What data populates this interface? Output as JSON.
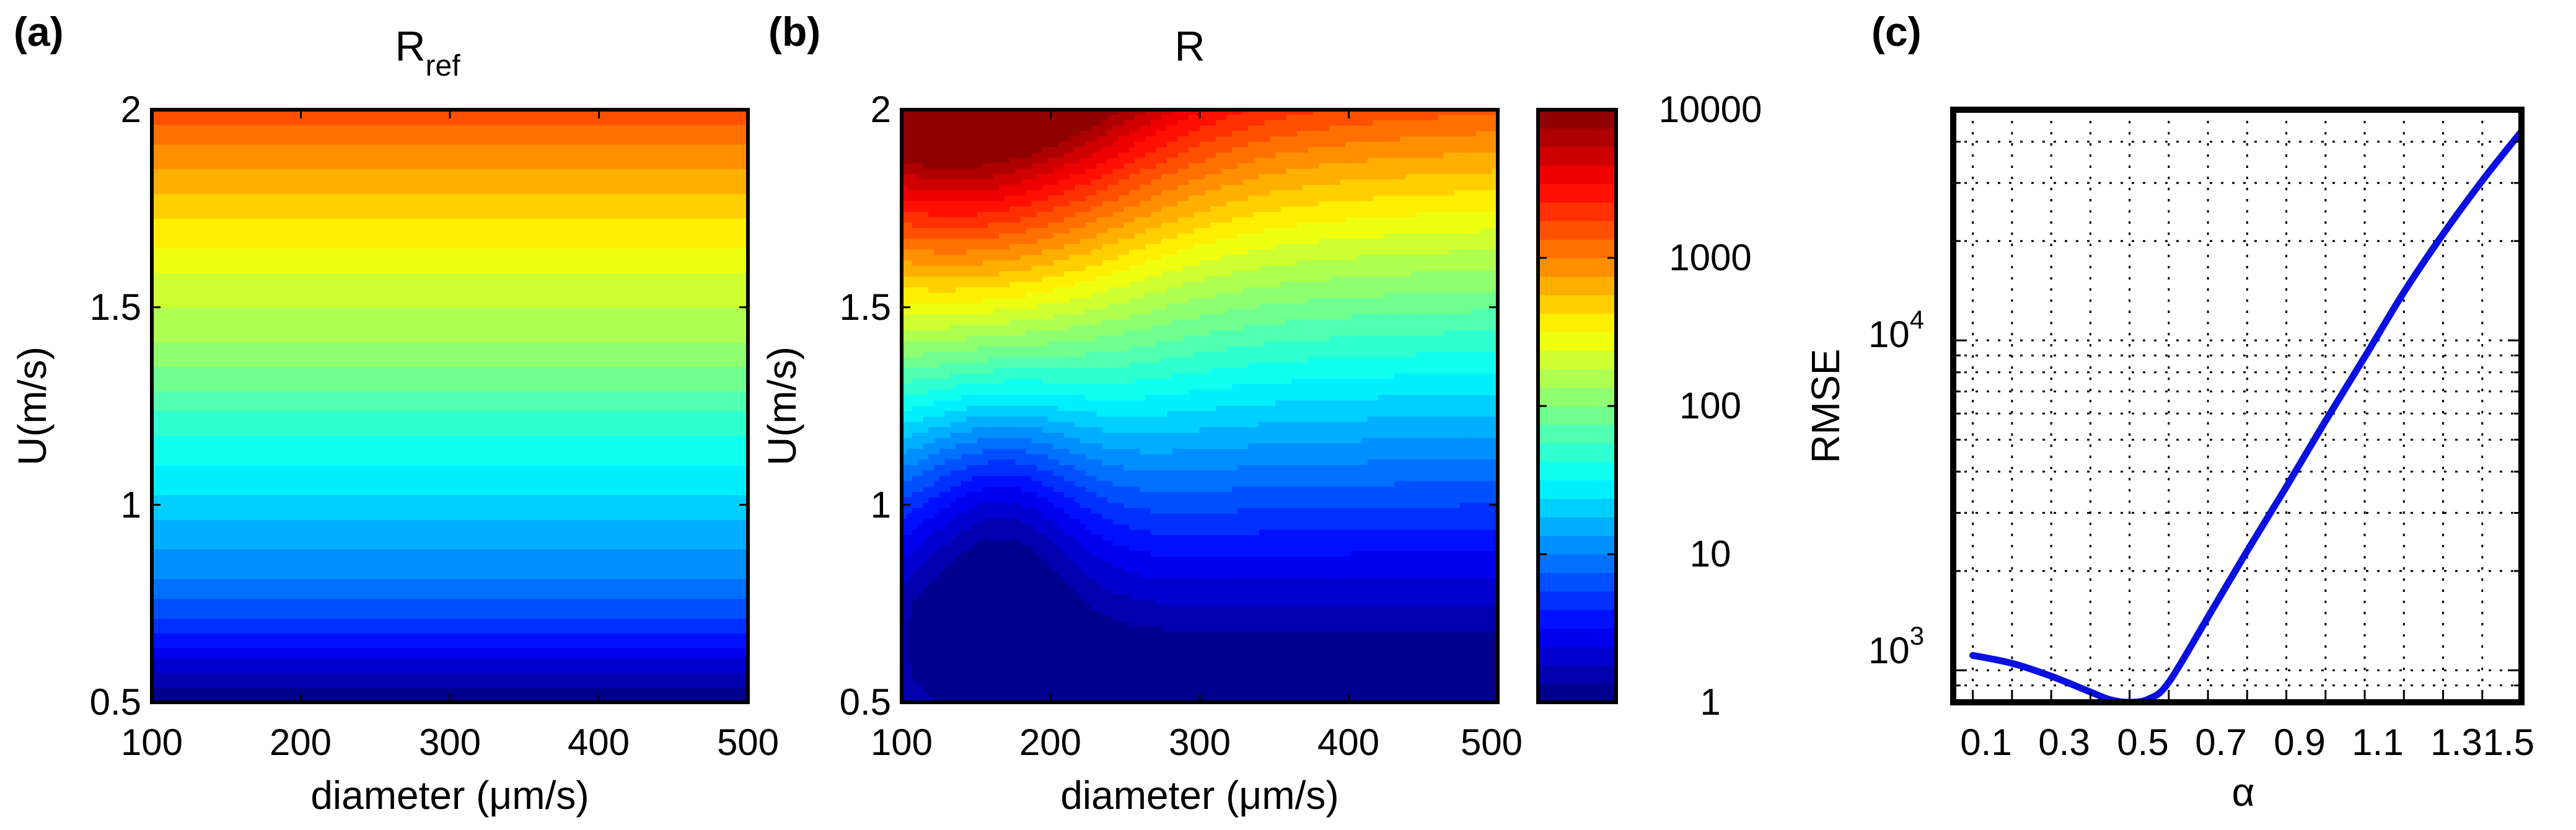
{
  "chart_data": [
    {
      "panel": "(a)",
      "type": "heatmap",
      "title": "R",
      "title_subscript": "ref",
      "xlabel": "diameter (μm/s)",
      "ylabel": "U(m/s)",
      "xlim": [
        100,
        500
      ],
      "ylim": [
        0.5,
        2
      ],
      "xticks": [
        "100",
        "200",
        "300",
        "400",
        "500"
      ],
      "yticks": [
        "0.5",
        "1",
        "1.5",
        "2"
      ],
      "field": "log10(R) depends on U only; R ≈ 1 at U=0.5 rising to ≈ 1600 at U=2",
      "profile_U": [
        0.5,
        0.6,
        0.7,
        0.8,
        0.9,
        1.0,
        1.1,
        1.2,
        1.3,
        1.4,
        1.5,
        1.6,
        1.7,
        1.8,
        1.9,
        2.0
      ],
      "profile_log10R": [
        0.0,
        0.35,
        0.72,
        0.98,
        1.15,
        1.32,
        1.5,
        1.68,
        1.9,
        2.1,
        2.25,
        2.4,
        2.58,
        2.78,
        2.98,
        3.2
      ]
    },
    {
      "panel": "(b)",
      "type": "heatmap",
      "title": "R",
      "xlabel": "diameter (μm/s)",
      "ylabel": "U(m/s)",
      "xlim": [
        100,
        500
      ],
      "ylim": [
        0.5,
        2
      ],
      "xticks": [
        "100",
        "200",
        "300",
        "400",
        "500"
      ],
      "yticks": [
        "0.5",
        "1",
        "1.5",
        "2"
      ],
      "field": "log10(R) peaks (~4, R≈10000) near diameter 140, U=2; falls with U; weaker growth at large diameter",
      "colorbar": {
        "scale": "log",
        "range": [
          1,
          10000
        ],
        "ticks": [
          "10000",
          "1000",
          "100",
          "10",
          "1"
        ]
      }
    },
    {
      "panel": "(c)",
      "type": "line",
      "xlabel": "α",
      "ylabel": "RMSE",
      "yscale": "log",
      "xlim": [
        0.05,
        1.5
      ],
      "ylim": [
        800,
        50000
      ],
      "xticks": [
        "0.1",
        "0.3",
        "0.5",
        "0.7",
        "0.9",
        "1.1",
        "1.3",
        "1.5"
      ],
      "yticks": [
        {
          "base": "10",
          "exp": "3"
        },
        {
          "base": "10",
          "exp": "4"
        }
      ],
      "grid": true,
      "series": [
        {
          "name": "RMSE",
          "color": "#0a10e0",
          "x": [
            0.1,
            0.2,
            0.3,
            0.4,
            0.45,
            0.5,
            0.55,
            0.6,
            0.7,
            0.8,
            0.9,
            1.0,
            1.1,
            1.2,
            1.3,
            1.4,
            1.5
          ],
          "y": [
            1110,
            1050,
            960,
            860,
            815,
            800,
            820,
            920,
            1450,
            2300,
            3600,
            5700,
            8900,
            14000,
            21000,
            30500,
            43000
          ]
        }
      ]
    }
  ]
}
